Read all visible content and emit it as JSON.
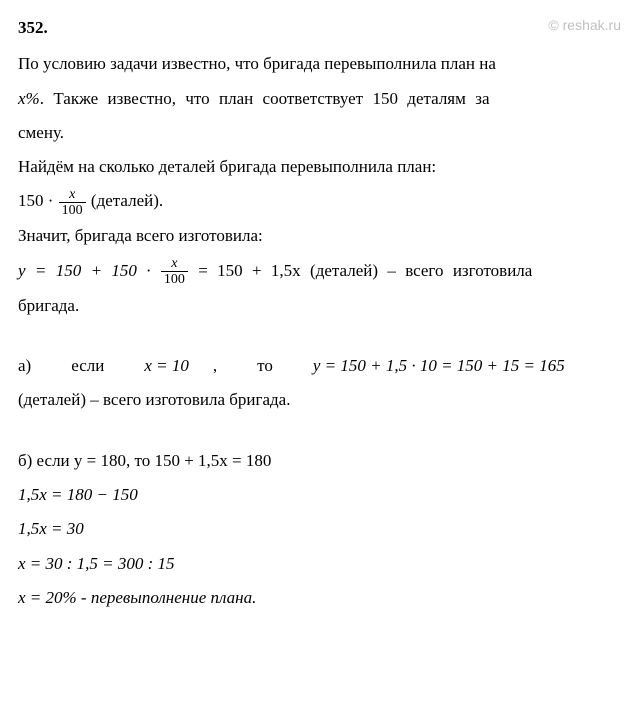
{
  "header": {
    "exercise_number": "352.",
    "watermark": "© reshak.ru"
  },
  "text": {
    "p1": "По условию задачи известно, что бригада перевыполнила план на",
    "p2_prefix": "x%",
    "p2_rest": ". Также известно, что план соответствует 150 деталям за",
    "p3": "смену.",
    "p4": "Найдём на сколько деталей бригада перевыполнила план:",
    "formula1_prefix": "150 ·",
    "formula1_num": "x",
    "formula1_den": "100",
    "formula1_suffix": " (деталей).",
    "p5": "Значит, бригада всего изготовила:",
    "formula2_lhs": "y = 150 + 150 ·",
    "formula2_num": "x",
    "formula2_den": "100",
    "formula2_rhs": " = 150 + 1,5x  (деталей)  –  всего  изготовила",
    "p6": "бригада.",
    "part_a_prefix": "а)",
    "part_a_word1": "если",
    "part_a_cond": "x = 10",
    "part_a_word2": ",",
    "part_a_word3": "то",
    "part_a_calc": "y = 150 + 1,5 · 10 = 150 + 15 = 165",
    "part_a_line2": "(деталей) – всего изготовила бригада.",
    "part_b_line1": "б) если y = 180, то 150 + 1,5x = 180",
    "part_b_line2": "1,5x = 180 − 150",
    "part_b_line3": "1,5x = 30",
    "part_b_line4": "x = 30 : 1,5 = 300 : 15",
    "part_b_line5": "x = 20% - перевыполнение плана."
  },
  "styling": {
    "background_color": "#ffffff",
    "text_color": "#000000",
    "watermark_color": "#c0c0c0",
    "font_family": "Times New Roman",
    "font_size": 17
  }
}
